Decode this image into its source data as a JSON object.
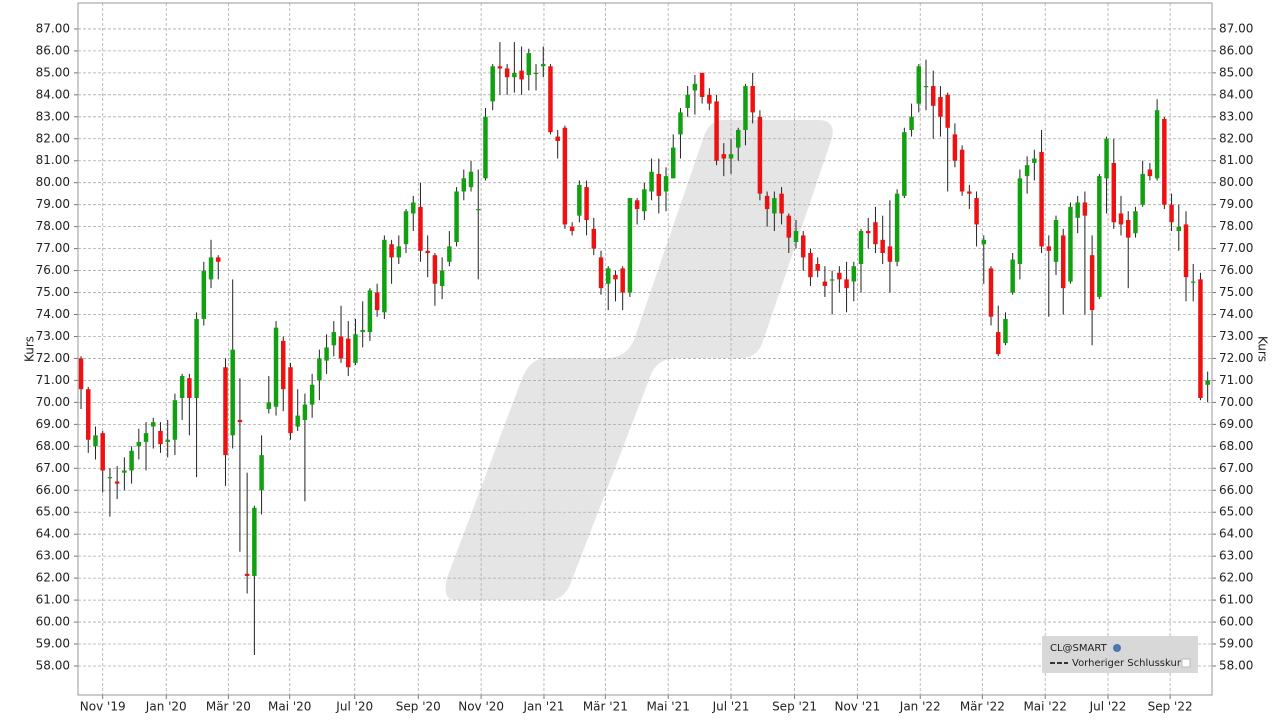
{
  "chart_data": {
    "type": "candlestick",
    "y_label": "Kurs",
    "ylim": [
      56.68,
      88.18
    ],
    "yticks": [
      {
        "value": 58,
        "label": "58.00"
      },
      {
        "value": 59,
        "label": "59.00"
      },
      {
        "value": 60,
        "label": "60.00"
      },
      {
        "value": 61,
        "label": "61.00"
      },
      {
        "value": 62,
        "label": "62.00"
      },
      {
        "value": 63,
        "label": "63.00"
      },
      {
        "value": 64,
        "label": "64.00"
      },
      {
        "value": 65,
        "label": "65.00"
      },
      {
        "value": 66,
        "label": "66.00"
      },
      {
        "value": 67,
        "label": "67.00"
      },
      {
        "value": 68,
        "label": "68.00"
      },
      {
        "value": 69,
        "label": "69.00"
      },
      {
        "value": 70,
        "label": "70.00"
      },
      {
        "value": 71,
        "label": "71.00"
      },
      {
        "value": 72,
        "label": "72.00"
      },
      {
        "value": 73,
        "label": "73.00"
      },
      {
        "value": 74,
        "label": "74.00"
      },
      {
        "value": 75,
        "label": "75.00"
      },
      {
        "value": 76,
        "label": "76.00"
      },
      {
        "value": 77,
        "label": "77.00"
      },
      {
        "value": 78,
        "label": "78.00"
      },
      {
        "value": 79,
        "label": "79.00"
      },
      {
        "value": 80,
        "label": "80.00"
      },
      {
        "value": 81,
        "label": "81.00"
      },
      {
        "value": 82,
        "label": "82.00"
      },
      {
        "value": 83,
        "label": "83.00"
      },
      {
        "value": 84,
        "label": "84.00"
      },
      {
        "value": 85,
        "label": "85.00"
      },
      {
        "value": 86,
        "label": "86.00"
      },
      {
        "value": 87,
        "label": "87.00"
      }
    ],
    "xlim": [
      -0.42,
      156.6
    ],
    "xticks": [
      {
        "value": 3.0,
        "label": "Nov '19"
      },
      {
        "value": 11.8,
        "label": "Jan '20"
      },
      {
        "value": 20.4,
        "label": "Mär '20"
      },
      {
        "value": 28.9,
        "label": "Mai '20"
      },
      {
        "value": 37.9,
        "label": "Jul '20"
      },
      {
        "value": 46.7,
        "label": "Sep '20"
      },
      {
        "value": 55.4,
        "label": "Nov '20"
      },
      {
        "value": 64.1,
        "label": "Jan '21"
      },
      {
        "value": 72.6,
        "label": "Mär '21"
      },
      {
        "value": 81.3,
        "label": "Mai '21"
      },
      {
        "value": 90.0,
        "label": "Jul '21"
      },
      {
        "value": 98.8,
        "label": "Sep '21"
      },
      {
        "value": 107.5,
        "label": "Nov '21"
      },
      {
        "value": 116.2,
        "label": "Jan '22"
      },
      {
        "value": 124.8,
        "label": "Mär '22"
      },
      {
        "value": 133.5,
        "label": "Mai '22"
      },
      {
        "value": 142.2,
        "label": "Jul '22"
      },
      {
        "value": 150.8,
        "label": "Sep '22"
      }
    ],
    "grid": true,
    "legend": "bottom-right",
    "series": [
      {
        "name": "CL@SMART",
        "up_color": "#10a010",
        "down_color": "#ee1111",
        "open": [
          72.0,
          70.6,
          68.0,
          68.6,
          66.6,
          66.4,
          66.8,
          66.9,
          68.0,
          68.2,
          68.9,
          68.7,
          68.2,
          68.3,
          70.2,
          71.1,
          70.2,
          73.8,
          75.6,
          76.6,
          71.6,
          68.5,
          69.2,
          62.2,
          62.1,
          66.0,
          69.7,
          69.8,
          72.8,
          71.6,
          68.9,
          69.2,
          69.9,
          71.0,
          71.9,
          72.6,
          73.0,
          72.9,
          71.8,
          73.2,
          73.2,
          75.0,
          74.1,
          77.2,
          76.6,
          77.2,
          78.6,
          78.9,
          76.9,
          76.7,
          75.3,
          76.4,
          77.3,
          79.6,
          79.8,
          78.8,
          80.2,
          83.7,
          85.3,
          85.2,
          84.8,
          85.1,
          84.9,
          85.0,
          85.3,
          85.3,
          82.1,
          82.5,
          78.0,
          78.5,
          79.8,
          77.9,
          76.6,
          75.4,
          75.8,
          76.1,
          75.0,
          79.2,
          78.7,
          79.6,
          80.4,
          79.6,
          80.2,
          82.2,
          83.4,
          84.2,
          85.0,
          84.0,
          83.7,
          81.3,
          81.1,
          81.6,
          82.4,
          84.4,
          83.0,
          79.4,
          78.6,
          79.5,
          78.5,
          77.3,
          77.6,
          76.8,
          76.3,
          75.5,
          75.6,
          75.9,
          75.6,
          75.5,
          76.3,
          77.8,
          78.2,
          77.4,
          77.1,
          76.4,
          79.4,
          82.4,
          83.6,
          84.4,
          84.4,
          83.9,
          84.0,
          82.2,
          81.5,
          79.6,
          79.3,
          77.2,
          76.1,
          73.2,
          72.7,
          75.0,
          76.3,
          80.3,
          80.9,
          81.4,
          77.1,
          76.4,
          77.6,
          75.5,
          78.4,
          79.1,
          76.7,
          74.8,
          80.2,
          80.9,
          78.6,
          78.3,
          77.7,
          79.0,
          80.6,
          80.2,
          82.9,
          79.0,
          77.8,
          78.1,
          75.5,
          75.6,
          70.8
        ],
        "high": [
          72.1,
          70.7,
          68.9,
          68.7,
          67.0,
          67.1,
          67.5,
          68.0,
          68.8,
          69.1,
          69.3,
          69.1,
          69.2,
          70.4,
          71.3,
          71.3,
          74.1,
          76.4,
          77.4,
          76.7,
          72.0,
          75.6,
          71.1,
          66.8,
          65.3,
          68.5,
          71.2,
          73.7,
          73.0,
          71.8,
          70.6,
          70.4,
          71.3,
          72.4,
          73.1,
          73.7,
          74.4,
          73.7,
          73.8,
          74.6,
          75.2,
          75.4,
          77.6,
          77.4,
          77.6,
          78.8,
          79.4,
          80.0,
          77.6,
          76.8,
          76.6,
          77.8,
          79.8,
          80.6,
          81.0,
          80.6,
          83.4,
          85.4,
          86.4,
          85.4,
          86.4,
          86.2,
          86.1,
          85.4,
          86.2,
          85.4,
          82.4,
          82.6,
          78.2,
          80.1,
          80.1,
          78.4,
          76.9,
          76.2,
          76.0,
          76.2,
          79.3,
          79.3,
          80.0,
          81.1,
          81.1,
          80.7,
          82.2,
          83.4,
          84.4,
          84.9,
          85.0,
          84.3,
          84.0,
          81.8,
          82.0,
          82.5,
          84.5,
          85.0,
          83.3,
          79.6,
          79.6,
          79.8,
          78.6,
          78.3,
          77.8,
          77.0,
          76.6,
          76.2,
          76.0,
          76.2,
          76.4,
          76.4,
          77.9,
          78.4,
          78.9,
          78.5,
          79.2,
          79.7,
          82.5,
          83.6,
          85.4,
          85.6,
          85.1,
          84.4,
          84.1,
          82.7,
          81.7,
          79.9,
          79.6,
          77.6,
          76.2,
          74.4,
          74.1,
          76.8,
          80.6,
          81.2,
          81.5,
          82.4,
          77.6,
          78.5,
          77.9,
          79.1,
          79.4,
          79.6,
          77.6,
          80.4,
          82.1,
          82.0,
          79.4,
          78.7,
          78.9,
          81.0,
          80.9,
          83.8,
          83.0,
          79.5,
          79.0,
          78.7,
          76.3,
          75.9,
          71.4
        ],
        "low": [
          69.7,
          67.7,
          67.4,
          65.9,
          64.8,
          65.6,
          66.0,
          66.3,
          67.4,
          66.9,
          67.9,
          67.7,
          67.5,
          67.6,
          69.2,
          68.5,
          66.6,
          73.5,
          75.2,
          75.6,
          66.2,
          67.9,
          63.2,
          61.3,
          58.5,
          64.9,
          69.5,
          69.4,
          69.6,
          68.3,
          68.7,
          65.5,
          69.3,
          70.1,
          71.3,
          72.1,
          71.8,
          71.2,
          71.7,
          72.5,
          72.8,
          73.9,
          73.8,
          75.4,
          76.3,
          76.8,
          77.8,
          76.4,
          75.7,
          74.4,
          74.7,
          76.2,
          77.1,
          79.2,
          79.6,
          75.6,
          80.1,
          83.3,
          84.0,
          84.0,
          84.1,
          84.0,
          84.2,
          84.2,
          84.8,
          82.2,
          81.1,
          77.9,
          77.6,
          78.2,
          77.6,
          76.7,
          74.9,
          74.2,
          74.6,
          74.2,
          74.8,
          78.1,
          78.3,
          79.2,
          78.6,
          78.7,
          80.2,
          81.1,
          83.0,
          83.1,
          83.6,
          83.3,
          80.8,
          80.3,
          80.4,
          81.0,
          81.7,
          82.7,
          79.2,
          78.0,
          77.8,
          78.1,
          76.8,
          77.0,
          76.0,
          75.3,
          75.7,
          74.8,
          74.0,
          75.0,
          74.1,
          74.6,
          75.0,
          77.0,
          76.8,
          76.3,
          75.0,
          76.2,
          79.3,
          82.1,
          83.2,
          83.3,
          82.0,
          82.1,
          79.6,
          80.7,
          79.4,
          78.8,
          77.1,
          75.4,
          73.5,
          72.1,
          72.6,
          74.9,
          75.6,
          79.5,
          80.1,
          76.8,
          73.9,
          75.8,
          74.0,
          75.4,
          77.7,
          74.0,
          72.6,
          74.7,
          78.6,
          77.9,
          77.6,
          75.2,
          77.5,
          78.9,
          80.1,
          80.1,
          78.8,
          77.8,
          76.9,
          74.6,
          74.6,
          70.1,
          70.0
        ],
        "close": [
          70.6,
          68.3,
          68.5,
          66.9,
          66.6,
          66.3,
          66.9,
          67.8,
          68.2,
          68.6,
          69.1,
          68.1,
          68.3,
          70.1,
          71.2,
          70.2,
          73.8,
          76.0,
          76.6,
          76.4,
          67.6,
          72.4,
          69.1,
          62.1,
          65.2,
          67.6,
          70.0,
          73.4,
          70.6,
          68.6,
          69.4,
          69.9,
          70.8,
          72.0,
          72.5,
          73.2,
          72.0,
          71.6,
          73.1,
          73.3,
          75.1,
          74.2,
          77.4,
          76.6,
          77.1,
          78.7,
          79.1,
          76.9,
          76.8,
          75.4,
          76.0,
          77.1,
          79.6,
          80.2,
          80.5,
          78.8,
          83.0,
          85.3,
          85.2,
          84.8,
          85.0,
          84.7,
          85.9,
          85.0,
          85.4,
          82.3,
          81.9,
          78.1,
          77.8,
          79.9,
          78.3,
          77.0,
          75.2,
          76.1,
          75.6,
          75.0,
          79.3,
          78.8,
          79.7,
          80.5,
          79.4,
          80.3,
          81.6,
          83.2,
          84.0,
          84.5,
          83.9,
          83.6,
          81.0,
          81.1,
          81.3,
          82.4,
          84.4,
          83.2,
          79.5,
          78.8,
          79.3,
          78.6,
          77.5,
          77.8,
          76.6,
          75.7,
          76.0,
          75.3,
          75.6,
          75.6,
          75.2,
          76.2,
          77.8,
          77.7,
          77.2,
          76.8,
          76.4,
          79.5,
          82.3,
          83.0,
          85.3,
          84.4,
          83.5,
          83.0,
          82.5,
          81.0,
          79.6,
          79.5,
          78.1,
          77.4,
          73.9,
          72.2,
          73.8,
          76.5,
          80.2,
          80.8,
          81.1,
          77.1,
          76.9,
          78.3,
          75.2,
          78.9,
          79.1,
          78.5,
          74.2,
          80.3,
          82.0,
          78.2,
          78.1,
          77.5,
          78.7,
          80.4,
          80.3,
          83.3,
          79.0,
          78.2,
          78.0,
          75.7,
          75.5,
          70.2,
          71.0
        ]
      },
      {
        "name": "Vorheriger Schlusskurs",
        "color": "#333333",
        "dash": true
      }
    ]
  }
}
